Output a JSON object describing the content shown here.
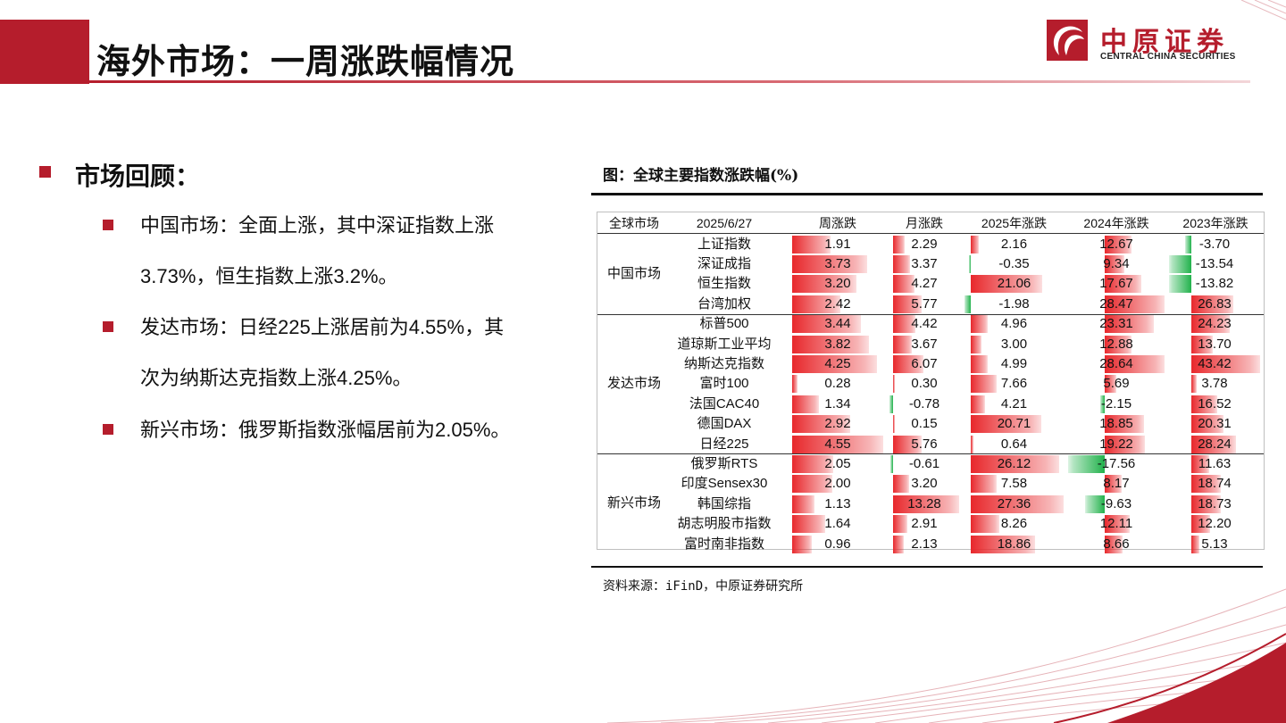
{
  "header": {
    "title": "海外市场：一周涨跌幅情况",
    "logo_cn": "中原证券",
    "logo_en": "CENTRAL CHINA SECURITIES"
  },
  "review": {
    "title": "市场回顾：",
    "bullets": [
      [
        "中国市场：全面上涨，其中深证指数上涨",
        "3.73%，恒生指数上涨3.2%。"
      ],
      [
        "发达市场：日经225上涨居前为4.55%，其",
        "次为纳斯达克指数上涨4.25%。"
      ],
      [
        "新兴市场：俄罗斯指数涨幅居前为2.05%。"
      ]
    ]
  },
  "figure": {
    "title": "图：全球主要指数涨跌幅(%)",
    "source": "资料来源：iFinD，中原证券研究所"
  },
  "colors": {
    "accent": "#b51d2c",
    "pos_bar": "#e8282c",
    "neg_bar": "#22b24c"
  },
  "chart_data": {
    "type": "table",
    "headers": [
      "全球市场",
      "2025/6/27",
      "周涨跌",
      "月涨跌",
      "2025年涨跌",
      "2024年涨跌",
      "2023年涨跌"
    ],
    "groups": [
      {
        "name": "中国市场",
        "rows": [
          {
            "name": "上证指数",
            "values": [
              "1.91",
              "2.29",
              "2.16",
              "12.67",
              "-3.70"
            ]
          },
          {
            "name": "深证成指",
            "values": [
              "3.73",
              "3.37",
              "-0.35",
              "9.34",
              "-13.54"
            ]
          },
          {
            "name": "恒生指数",
            "values": [
              "3.20",
              "4.27",
              "21.06",
              "17.67",
              "-13.82"
            ]
          },
          {
            "name": "台湾加权",
            "values": [
              "2.42",
              "5.77",
              "-1.98",
              "28.47",
              "26.83"
            ]
          }
        ]
      },
      {
        "name": "发达市场",
        "rows": [
          {
            "name": "标普500",
            "values": [
              "3.44",
              "4.42",
              "4.96",
              "23.31",
              "24.23"
            ]
          },
          {
            "name": "道琼斯工业平均",
            "values": [
              "3.82",
              "3.67",
              "3.00",
              "12.88",
              "13.70"
            ]
          },
          {
            "name": "纳斯达克指数",
            "values": [
              "4.25",
              "6.07",
              "4.99",
              "28.64",
              "43.42"
            ]
          },
          {
            "name": "富时100",
            "values": [
              "0.28",
              "0.30",
              "7.66",
              "5.69",
              "3.78"
            ]
          },
          {
            "name": "法国CAC40",
            "values": [
              "1.34",
              "-0.78",
              "4.21",
              "-2.15",
              "16.52"
            ]
          },
          {
            "name": "德国DAX",
            "values": [
              "2.92",
              "0.15",
              "20.71",
              "18.85",
              "20.31"
            ]
          },
          {
            "name": "日经225",
            "values": [
              "4.55",
              "5.76",
              "0.64",
              "19.22",
              "28.24"
            ]
          }
        ]
      },
      {
        "name": "新兴市场",
        "rows": [
          {
            "name": "俄罗斯RTS",
            "values": [
              "2.05",
              "-0.61",
              "26.12",
              "-17.56",
              "11.63"
            ]
          },
          {
            "name": "印度Sensex30",
            "values": [
              "2.00",
              "3.20",
              "7.58",
              "8.17",
              "18.74"
            ]
          },
          {
            "name": "韩国综指",
            "values": [
              "1.13",
              "13.28",
              "27.36",
              "-9.63",
              "18.73"
            ]
          },
          {
            "name": "胡志明股市指数",
            "values": [
              "1.64",
              "2.91",
              "8.26",
              "12.11",
              "12.20"
            ]
          },
          {
            "name": "富时南非指数",
            "values": [
              "0.96",
              "2.13",
              "18.86",
              "8.66",
              "5.13"
            ]
          }
        ]
      }
    ]
  }
}
